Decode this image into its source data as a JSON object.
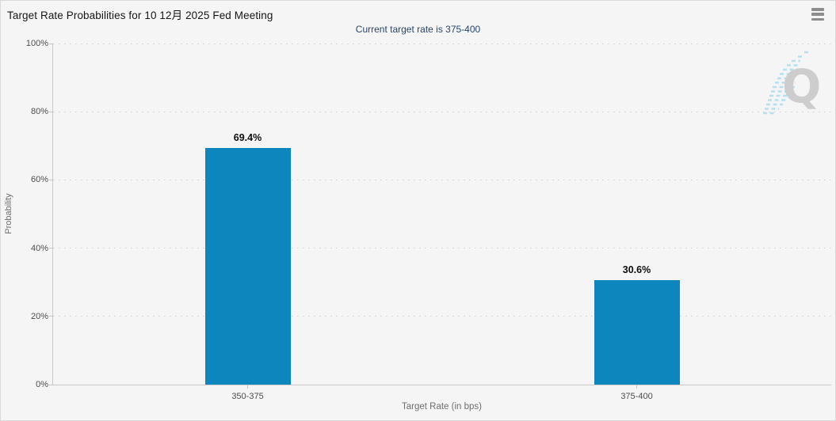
{
  "header": {
    "title": "Target Rate Probabilities for 10 12月 2025 Fed Meeting",
    "subtitle": "Current target rate is 375-400",
    "menu_tooltip": "Chart context menu"
  },
  "watermark": {
    "letter": "Q"
  },
  "colors": {
    "bar": "#0d86bd",
    "subtitle_text": "#26466b",
    "grid": "#cfcfcf",
    "axis_line": "#c9c9c9",
    "tick_text": "#4d4d4d",
    "muted_text": "#6e6e6e",
    "background": "#f5f5f6",
    "watermark_q": "#c9c9c9",
    "watermark_hatch": "#aedff2"
  },
  "chart_data": {
    "type": "bar",
    "title": "Target Rate Probabilities for 10 12月 2025 Fed Meeting",
    "subtitle": "Current target rate is 375-400",
    "categories": [
      "350-375",
      "375-400"
    ],
    "values": [
      69.4,
      30.6
    ],
    "value_labels": [
      "69.4%",
      "30.6%"
    ],
    "xlabel": "Target Rate (in bps)",
    "ylabel": "Probability",
    "ylim": [
      0,
      100
    ],
    "ytick_labels": [
      "100%",
      "80%",
      "60%",
      "40%",
      "20%",
      "0%"
    ],
    "ytick_step": 20,
    "grid": "horizontal dotted",
    "legend": "none",
    "bar_color": "#0d86bd"
  }
}
